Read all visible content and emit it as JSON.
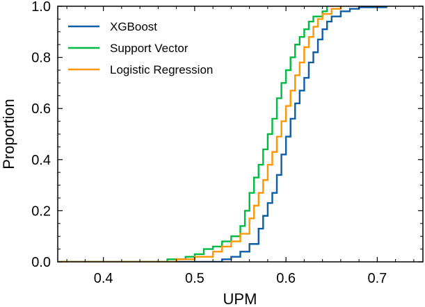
{
  "chart_data": {
    "type": "line",
    "subtype": "empirical-cdf-step",
    "title": "",
    "xlabel": "UPM",
    "ylabel": "Proportion",
    "xlim": [
      0.35,
      0.75
    ],
    "ylim": [
      0.0,
      1.0
    ],
    "x_ticks": [
      0.4,
      0.5,
      0.6,
      0.7
    ],
    "x_tick_labels": [
      "0.4",
      "0.5",
      "0.6",
      "0.7"
    ],
    "y_ticks": [
      0.0,
      0.2,
      0.4,
      0.6,
      0.8,
      1.0
    ],
    "y_tick_labels": [
      "0.0",
      "0.2",
      "0.4",
      "0.6",
      "0.8",
      "1.0"
    ],
    "grid": false,
    "legend_position": "top-left",
    "series": [
      {
        "name": "XGBoost",
        "color": "#0C5DA5",
        "points": [
          [
            0.35,
            0.0
          ],
          [
            0.525,
            0.0
          ],
          [
            0.53,
            0.01
          ],
          [
            0.54,
            0.02
          ],
          [
            0.55,
            0.04
          ],
          [
            0.56,
            0.07
          ],
          [
            0.57,
            0.13
          ],
          [
            0.575,
            0.18
          ],
          [
            0.58,
            0.23
          ],
          [
            0.585,
            0.27
          ],
          [
            0.59,
            0.34
          ],
          [
            0.595,
            0.42
          ],
          [
            0.6,
            0.49
          ],
          [
            0.605,
            0.56
          ],
          [
            0.61,
            0.62
          ],
          [
            0.615,
            0.67
          ],
          [
            0.62,
            0.72
          ],
          [
            0.625,
            0.78
          ],
          [
            0.63,
            0.82
          ],
          [
            0.635,
            0.87
          ],
          [
            0.64,
            0.91
          ],
          [
            0.645,
            0.94
          ],
          [
            0.65,
            0.96
          ],
          [
            0.66,
            0.98
          ],
          [
            0.67,
            0.99
          ],
          [
            0.68,
            0.996
          ],
          [
            0.71,
            1.0
          ]
        ]
      },
      {
        "name": "Support Vector",
        "color": "#00B945",
        "points": [
          [
            0.35,
            0.0
          ],
          [
            0.45,
            0.0
          ],
          [
            0.47,
            0.01
          ],
          [
            0.49,
            0.02
          ],
          [
            0.5,
            0.03
          ],
          [
            0.51,
            0.05
          ],
          [
            0.52,
            0.06
          ],
          [
            0.53,
            0.08
          ],
          [
            0.54,
            0.1
          ],
          [
            0.55,
            0.14
          ],
          [
            0.555,
            0.2
          ],
          [
            0.56,
            0.27
          ],
          [
            0.565,
            0.33
          ],
          [
            0.57,
            0.38
          ],
          [
            0.575,
            0.44
          ],
          [
            0.58,
            0.5
          ],
          [
            0.585,
            0.56
          ],
          [
            0.59,
            0.64
          ],
          [
            0.595,
            0.7
          ],
          [
            0.6,
            0.75
          ],
          [
            0.605,
            0.8
          ],
          [
            0.61,
            0.85
          ],
          [
            0.615,
            0.88
          ],
          [
            0.62,
            0.91
          ],
          [
            0.625,
            0.94
          ],
          [
            0.63,
            0.96
          ],
          [
            0.64,
            0.98
          ],
          [
            0.645,
            1.0
          ]
        ]
      },
      {
        "name": "Logistic Regression",
        "color": "#FF9500",
        "points": [
          [
            0.35,
            0.0
          ],
          [
            0.46,
            0.0
          ],
          [
            0.48,
            0.01
          ],
          [
            0.5,
            0.02
          ],
          [
            0.52,
            0.04
          ],
          [
            0.53,
            0.06
          ],
          [
            0.54,
            0.08
          ],
          [
            0.55,
            0.11
          ],
          [
            0.56,
            0.17
          ],
          [
            0.565,
            0.22
          ],
          [
            0.57,
            0.27
          ],
          [
            0.575,
            0.32
          ],
          [
            0.58,
            0.38
          ],
          [
            0.585,
            0.43
          ],
          [
            0.59,
            0.49
          ],
          [
            0.595,
            0.55
          ],
          [
            0.6,
            0.61
          ],
          [
            0.605,
            0.67
          ],
          [
            0.61,
            0.73
          ],
          [
            0.615,
            0.78
          ],
          [
            0.62,
            0.84
          ],
          [
            0.625,
            0.88
          ],
          [
            0.63,
            0.92
          ],
          [
            0.635,
            0.95
          ],
          [
            0.64,
            0.97
          ],
          [
            0.65,
            0.99
          ],
          [
            0.66,
            1.0
          ]
        ]
      }
    ]
  }
}
